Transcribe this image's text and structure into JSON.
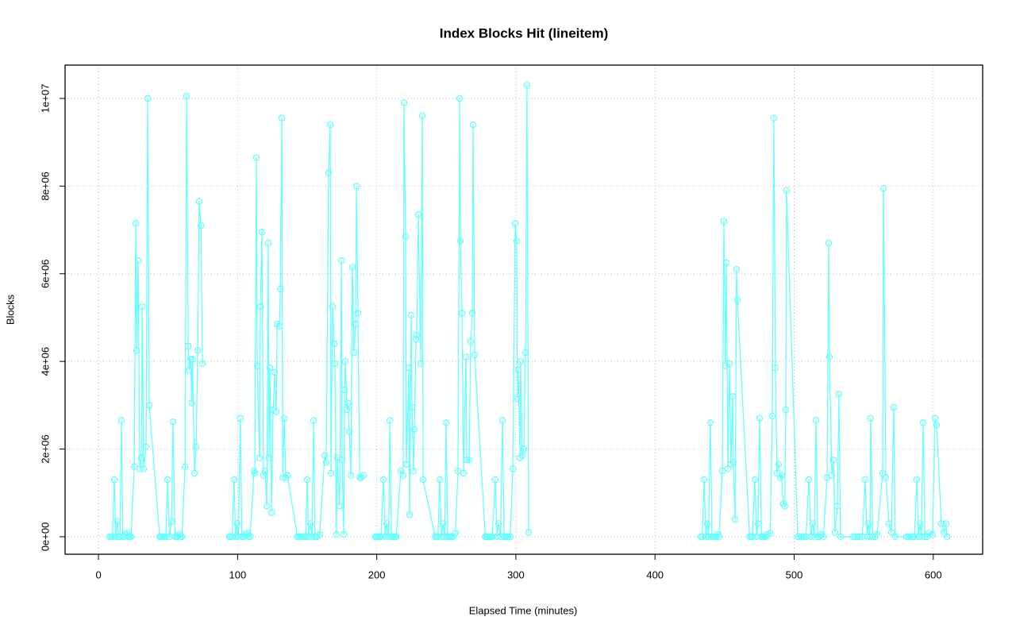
{
  "chart_data": {
    "type": "line",
    "title": "Index Blocks Hit (lineitem)",
    "xlabel": "Elapsed Time (minutes)",
    "ylabel": "Blocks",
    "xlim": [
      -24,
      635.5
    ],
    "ylim": [
      -400000,
      10760000
    ],
    "xticks": [
      0,
      100,
      200,
      300,
      400,
      500,
      600
    ],
    "yticks": [
      {
        "value": 0,
        "label": "0e+00"
      },
      {
        "value": 2000000,
        "label": "2e+06"
      },
      {
        "value": 4000000,
        "label": "4e+06"
      },
      {
        "value": 6000000,
        "label": "6e+06"
      },
      {
        "value": 8000000,
        "label": "8e+06"
      },
      {
        "value": 10000000,
        "label": "1e+07"
      }
    ],
    "grid": true,
    "series": [
      {
        "name": "Blocks",
        "color": "#66ffff",
        "x": [
          8,
          9,
          10,
          11.4,
          12.5,
          13.5,
          14.5,
          15.5,
          16.5,
          17.5,
          18.5,
          19.5,
          20.5,
          21.5,
          22.5,
          23.4,
          25.7,
          26.8,
          27.4,
          28.5,
          29.7,
          30.8,
          31.4,
          32.5,
          34.2,
          35.4,
          36.5,
          44,
          45,
          46,
          47,
          48.5,
          49.6,
          51,
          52.5,
          53.6,
          55,
          56,
          57,
          58,
          59,
          60,
          62.2,
          63.3,
          64.5,
          65.2,
          66.3,
          67,
          67.5,
          69,
          70.2,
          71.3,
          72.4,
          73.6,
          74.7,
          null,
          94,
          95,
          96,
          97.5,
          98.5,
          99.5,
          100.5,
          102,
          103,
          104,
          105,
          106,
          107,
          108,
          109,
          111.8,
          112.4,
          113.5,
          114.1,
          115.8,
          116.4,
          117.5,
          118.6,
          119.8,
          121,
          122,
          122.6,
          123.2,
          124.4,
          125.5,
          126.7,
          127.8,
          128.4,
          130,
          130.7,
          131.8,
          132.4,
          133.5,
          134.6,
          135.8,
          143,
          144,
          145,
          146,
          147,
          148,
          149,
          150,
          151,
          152.3,
          153.5,
          154.6,
          155.5,
          156.5,
          157,
          159,
          162.6,
          163.7,
          165.4,
          166.6,
          167.1,
          168.3,
          169.4,
          170,
          171,
          171.6,
          173.3,
          174.6,
          175.1,
          176.3,
          176.9,
          177.4,
          178.6,
          179.2,
          180.3,
          181.4,
          182.5,
          183.7,
          184.8,
          185.4,
          186.5,
          187.7,
          188.8,
          190.5,
          null,
          199,
          200,
          201,
          202,
          203,
          204.8,
          206,
          207.1,
          208.5,
          209.4,
          210.5,
          211.5,
          212.5,
          213.5,
          214,
          217.3,
          219,
          219.6,
          220.7,
          221.3,
          223,
          223.6,
          224.7,
          225.3,
          226.4,
          227,
          228.2,
          228.8,
          229.9,
          231.6,
          232.7,
          233.3,
          242,
          243,
          244,
          245.3,
          246.5,
          247.6,
          248.8,
          249.9,
          251,
          252,
          253,
          254,
          255,
          256.5,
          258.4,
          259.6,
          260.1,
          261.3,
          262.4,
          264.1,
          264.7,
          266.4,
          267.5,
          268.7,
          269.2,
          270.4,
          278,
          279,
          280,
          281,
          282,
          283,
          285.2,
          286.5,
          287.5,
          289,
          290.4,
          291.5,
          292.5,
          293.5,
          294.5,
          296,
          297.8,
          299.5,
          300.6,
          301.2,
          301.7,
          302.9,
          303.4,
          304.6,
          305.7,
          306.9,
          308,
          309.2,
          null,
          433,
          434,
          435.3,
          436.5,
          437.5,
          438.5,
          439.8,
          441,
          442,
          443,
          444,
          445.5,
          446,
          448.4,
          449.5,
          450.6,
          451.2,
          452.4,
          453.5,
          454.6,
          455.8,
          456.3,
          457.5,
          458.6,
          459.2,
          468,
          469,
          470,
          471.8,
          473,
          474,
          475.2,
          476.5,
          477.5,
          478.5,
          479.5,
          480.5,
          482.8,
          484.3,
          485.4,
          486.5,
          487.7,
          488.8,
          490,
          491,
          492.2,
          493.3,
          494,
          494.5,
          502.6,
          504,
          505.5,
          507,
          508.5,
          510.6,
          512,
          513.3,
          514.5,
          515.7,
          517,
          518,
          519.4,
          521,
          523.7,
          524.8,
          525.4,
          527.1,
          528.2,
          529.4,
          531.1,
          532.2,
          533.3,
          542.5,
          544,
          545.5,
          547,
          549,
          551,
          552.5,
          553.3,
          554.5,
          555,
          556.5,
          558,
          559.6,
          563.6,
          564.2,
          565.9,
          568.2,
          569.9,
          571.6,
          572.7,
          580.7,
          582,
          583.5,
          585,
          586.5,
          588.1,
          589.5,
          590.4,
          591.5,
          592.7,
          594,
          595.5,
          596.7,
          599.5,
          601.3,
          602.4,
          605.8,
          607.6,
          609.2,
          609.8
        ],
        "values": [
          0,
          0,
          0,
          1300000,
          0,
          350000,
          0,
          0,
          2650000,
          0,
          0,
          50000,
          80000,
          0,
          0,
          0,
          1600000,
          7150000,
          4250000,
          6300000,
          1550000,
          1800000,
          5250000,
          1550000,
          2050000,
          10000000,
          3000000,
          0,
          0,
          0,
          0,
          0,
          1300000,
          0,
          350000,
          2620000,
          0,
          0,
          0,
          50000,
          0,
          0,
          1600000,
          10050000,
          4350000,
          3800000,
          4050000,
          3050000,
          4050000,
          1450000,
          2050000,
          4250000,
          7650000,
          7100000,
          3950000,
          null,
          0,
          0,
          0,
          1300000,
          0,
          300000,
          0,
          2700000,
          0,
          0,
          0,
          50000,
          80000,
          0,
          0,
          1500000,
          1450000,
          8650000,
          3900000,
          1800000,
          5250000,
          6950000,
          1400000,
          1500000,
          700000,
          6700000,
          1800000,
          3850000,
          550000,
          2900000,
          3750000,
          2850000,
          4850000,
          4800000,
          5650000,
          9550000,
          1350000,
          2700000,
          1350000,
          1400000,
          0,
          0,
          0,
          0,
          0,
          0,
          0,
          1300000,
          0,
          300000,
          0,
          2650000,
          0,
          0,
          0,
          50000,
          1850000,
          1700000,
          8300000,
          9400000,
          1450000,
          5250000,
          4400000,
          3950000,
          50000,
          1800000,
          700000,
          6300000,
          1750000,
          50000,
          3350000,
          4000000,
          2900000,
          3050000,
          2400000,
          1400000,
          6150000,
          4200000,
          4850000,
          8000000,
          5100000,
          1350000,
          1350000,
          1400000,
          null,
          0,
          0,
          0,
          0,
          0,
          1300000,
          0,
          300000,
          0,
          2650000,
          0,
          0,
          0,
          0,
          0,
          1500000,
          1400000,
          9900000,
          6850000,
          1650000,
          3850000,
          500000,
          5050000,
          2950000,
          1500000,
          2450000,
          4500000,
          4600000,
          7350000,
          3950000,
          9600000,
          1300000,
          0,
          0,
          0,
          1300000,
          0,
          300000,
          0,
          2600000,
          0,
          0,
          0,
          0,
          0,
          80000,
          1500000,
          10000000,
          6750000,
          5100000,
          1450000,
          4100000,
          1750000,
          1750000,
          4450000,
          5100000,
          9400000,
          4150000,
          0,
          0,
          0,
          0,
          0,
          0,
          1300000,
          0,
          300000,
          0,
          2650000,
          0,
          0,
          0,
          0,
          0,
          1550000,
          7150000,
          6750000,
          3150000,
          3800000,
          1800000,
          4000000,
          1850000,
          2000000,
          4200000,
          10300000,
          100000,
          null,
          0,
          0,
          1300000,
          0,
          300000,
          0,
          2600000,
          0,
          0,
          0,
          0,
          50000,
          0,
          1500000,
          7200000,
          3900000,
          6250000,
          1550000,
          3950000,
          1650000,
          3200000,
          1700000,
          400000,
          6100000,
          5400000,
          0,
          0,
          0,
          1300000,
          0,
          300000,
          2700000,
          0,
          0,
          0,
          0,
          50000,
          80000,
          2750000,
          9550000,
          3850000,
          1450000,
          1650000,
          1350000,
          1400000,
          750000,
          700000,
          2900000,
          7900000,
          0,
          0,
          0,
          0,
          0,
          1300000,
          0,
          300000,
          0,
          2650000,
          0,
          0,
          50000,
          0,
          1350000,
          6700000,
          4100000,
          1400000,
          1750000,
          100000,
          700000,
          3250000,
          0,
          0,
          0,
          0,
          0,
          0,
          1300000,
          0,
          300000,
          0,
          2700000,
          0,
          0,
          50000,
          1450000,
          7950000,
          1350000,
          300000,
          100000,
          2950000,
          0,
          0,
          0,
          0,
          0,
          0,
          1300000,
          0,
          300000,
          0,
          2600000,
          0,
          0,
          80000,
          50000,
          2700000,
          2550000,
          300000,
          100000,
          300000,
          0
        ]
      }
    ]
  }
}
